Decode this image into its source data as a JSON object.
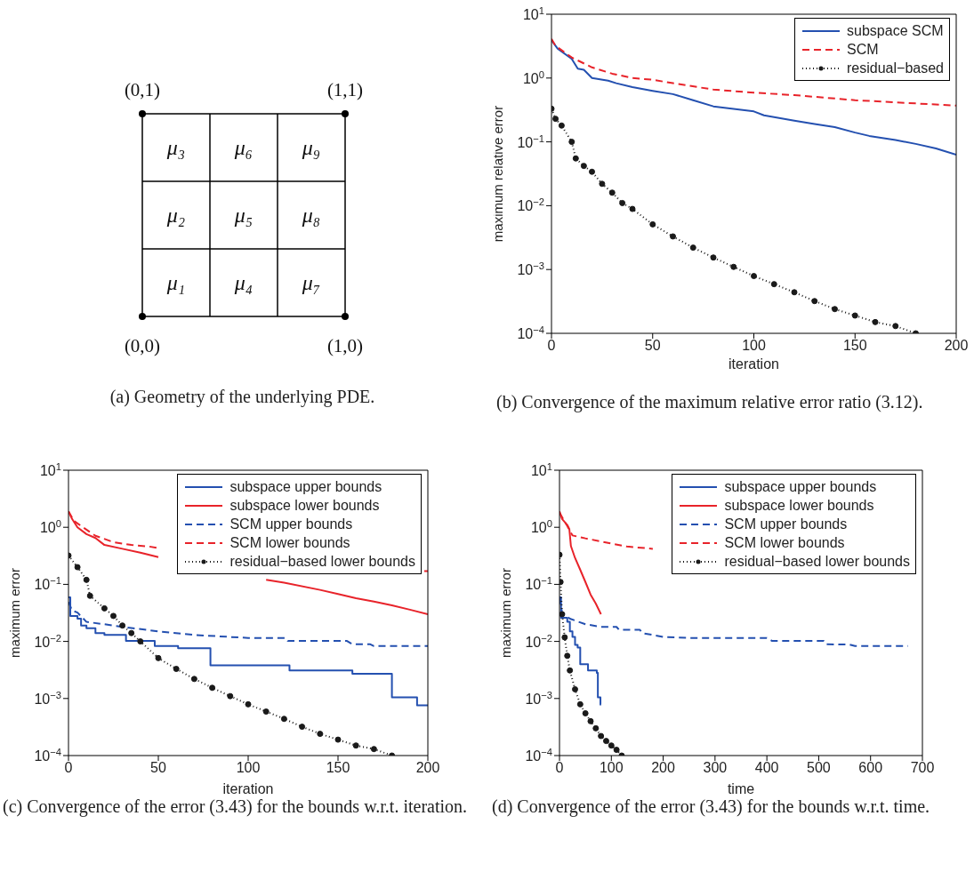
{
  "chart_data": [
    {
      "type": "other",
      "annotations": [
        "(0,1)",
        "(1,1)",
        "(0,0)",
        "(1,0)",
        "μ₃",
        "μ₆",
        "μ₉",
        "μ₂",
        "μ₅",
        "μ₈",
        "μ₁",
        "μ₄",
        "μ₇",
        "(a) Geometry of the underlying PDE."
      ]
    },
    {
      "type": "line",
      "xlabel": "iteration",
      "ylabel": "maximum relative error",
      "log": "y",
      "xlim": [
        0,
        200
      ],
      "xticks": [
        0,
        50,
        100,
        150,
        200
      ],
      "ylim": [
        0.0001,
        10
      ],
      "yticks": [
        {
          "value": 0.0001,
          "label": "10$^{−4}$"
        },
        {
          "value": 0.001,
          "label": "10$^{−3}$"
        },
        {
          "value": 0.01,
          "label": "10$^{−2}$"
        },
        {
          "value": 0.1,
          "label": "10$^{−1}$"
        },
        {
          "value": 1,
          "label": "10$^{0}$"
        },
        {
          "value": 10,
          "label": "10$^{1}$"
        }
      ],
      "legend": "top right",
      "annotations": [
        "(b) Convergence of the maximum relative error ratio (3.12)."
      ],
      "series": [
        {
          "name": "subspace SCM",
          "color": "#2450b0",
          "line_style": "solid",
          "x": [
            0,
            3,
            10,
            13,
            16,
            20,
            28,
            32,
            40,
            50,
            60,
            70,
            80,
            100,
            105,
            120,
            130,
            140,
            150,
            157,
            170,
            180,
            190,
            200
          ],
          "values": [
            3.9,
            2.9,
            2.0,
            1.4,
            1.35,
            1.0,
            0.91,
            0.83,
            0.72,
            0.63,
            0.56,
            0.45,
            0.36,
            0.3,
            0.26,
            0.215,
            0.19,
            0.17,
            0.14,
            0.124,
            0.107,
            0.093,
            0.079,
            0.063
          ]
        },
        {
          "name": "SCM",
          "color": "#e8232a",
          "line_style": "dashed",
          "x": [
            0,
            2,
            10,
            20,
            30,
            40,
            50,
            60,
            80,
            100,
            120,
            150,
            180,
            200
          ],
          "values": [
            4.1,
            3.2,
            2.1,
            1.47,
            1.17,
            1.0,
            0.94,
            0.83,
            0.66,
            0.59,
            0.54,
            0.45,
            0.4,
            0.37
          ]
        },
        {
          "name": "residual−based",
          "color": "#1a1a1a",
          "line_style": "dotted",
          "marker": "circle",
          "x": [
            0,
            2,
            5,
            10,
            12,
            16,
            20,
            25,
            30,
            35,
            40,
            50,
            60,
            70,
            80,
            90,
            100,
            110,
            120,
            130,
            140,
            150,
            160,
            170,
            180
          ],
          "values": [
            0.33,
            0.23,
            0.18,
            0.1,
            0.055,
            0.042,
            0.034,
            0.022,
            0.016,
            0.011,
            0.0089,
            0.0051,
            0.0033,
            0.0022,
            0.00154,
            0.0011,
            0.00079,
            0.00059,
            0.00044,
            0.00032,
            0.00024,
            0.00019,
            0.00015,
            0.00013,
            0.0001
          ]
        }
      ]
    },
    {
      "type": "line",
      "xlabel": "iteration",
      "ylabel": "maximum error",
      "log": "y",
      "xlim": [
        0,
        200
      ],
      "xticks": [
        0,
        50,
        100,
        150,
        200
      ],
      "ylim": [
        0.0001,
        10
      ],
      "yticks": [
        {
          "value": 0.0001,
          "label": "10$^{−4}$"
        },
        {
          "value": 0.001,
          "label": "10$^{−3}$"
        },
        {
          "value": 0.01,
          "label": "10$^{−2}$"
        },
        {
          "value": 0.1,
          "label": "10$^{−1}$"
        },
        {
          "value": 1,
          "label": "10$^{0}$"
        },
        {
          "value": 10,
          "label": "10$^{1}$"
        }
      ],
      "legend": "top right",
      "annotations": [
        "(c) Convergence of the error (3.43) for the bounds w.r.t. iteration."
      ],
      "series": [
        {
          "name": "subspace upper bounds",
          "color": "#2450b0",
          "type": "step",
          "line_style": "solid",
          "x": [
            0,
            1,
            5,
            7,
            10,
            15,
            20,
            32,
            48,
            61,
            79,
            123,
            158,
            180,
            194,
            200
          ],
          "values": [
            0.059,
            0.028,
            0.025,
            0.019,
            0.017,
            0.014,
            0.013,
            0.0102,
            0.0083,
            0.0076,
            0.0038,
            0.0031,
            0.0027,
            0.00105,
            0.00076,
            0.00076
          ]
        },
        {
          "name": "subspace lower bounds",
          "color": "#e8232a",
          "line_style": "solid",
          "x": [
            0,
            2,
            5,
            10,
            15,
            20,
            30,
            40,
            50,
            53,
            110,
            120,
            140,
            150,
            160,
            170,
            180,
            190,
            200
          ],
          "values": [
            1.9,
            1.4,
            1.0,
            0.76,
            0.65,
            0.49,
            0.42,
            0.36,
            0.3,
            null,
            0.12,
            0.107,
            0.08,
            0.068,
            0.057,
            0.05,
            0.043,
            0.036,
            0.03
          ]
        },
        {
          "name": "SCM upper bounds",
          "color": "#2450b0",
          "line_style": "dashed",
          "x": [
            0,
            2,
            5,
            10,
            20,
            30,
            50,
            70,
            100,
            121,
            122,
            155,
            158,
            168,
            170,
            200
          ],
          "values": [
            0.049,
            0.035,
            0.032,
            0.022,
            0.02,
            0.018,
            0.015,
            0.013,
            0.0115,
            0.0115,
            0.0102,
            0.0102,
            0.0089,
            0.0089,
            0.0083,
            0.0083
          ]
        },
        {
          "name": "SCM lower bounds",
          "color": "#e8232a",
          "line_style": "dashed",
          "x": [
            0,
            3,
            8,
            15,
            25,
            35,
            45,
            50,
            53,
            198,
            200
          ],
          "values": [
            1.9,
            1.3,
            1.0,
            0.71,
            0.55,
            0.49,
            0.46,
            0.43,
            null,
            0.17,
            0.17
          ]
        },
        {
          "name": "residual−based lower bounds",
          "color": "#1a1a1a",
          "line_style": "dotted",
          "marker": "circle",
          "x": [
            0,
            5,
            10,
            12,
            20,
            25,
            30,
            35,
            40,
            50,
            60,
            70,
            80,
            90,
            100,
            110,
            120,
            130,
            140,
            150,
            160,
            170,
            180
          ],
          "values": [
            0.32,
            0.2,
            0.12,
            0.063,
            0.038,
            0.028,
            0.019,
            0.014,
            0.01,
            0.0051,
            0.0033,
            0.0022,
            0.00154,
            0.0011,
            0.00079,
            0.00059,
            0.00044,
            0.00032,
            0.00024,
            0.00019,
            0.00015,
            0.00013,
            0.0001
          ]
        }
      ]
    },
    {
      "type": "line",
      "xlabel": "time",
      "ylabel": "maximum error",
      "log": "y",
      "xlim": [
        0,
        700
      ],
      "xticks": [
        0,
        100,
        200,
        300,
        400,
        500,
        600,
        700
      ],
      "ylim": [
        0.0001,
        10
      ],
      "yticks": [
        {
          "value": 0.0001,
          "label": "10$^{−4}$"
        },
        {
          "value": 0.001,
          "label": "10$^{−3}$"
        },
        {
          "value": 0.01,
          "label": "10$^{−2}$"
        },
        {
          "value": 0.1,
          "label": "10$^{−1}$"
        },
        {
          "value": 1,
          "label": "10$^{0}$"
        },
        {
          "value": 10,
          "label": "10$^{1}$"
        }
      ],
      "legend": "top right",
      "annotations": [
        "(d) Convergence of the error (3.43) for the bounds w.r.t. time."
      ],
      "series": [
        {
          "name": "subspace upper bounds",
          "color": "#2450b0",
          "type": "step",
          "line_style": "solid",
          "x": [
            0,
            3,
            15,
            20,
            25,
            30,
            35,
            40,
            55,
            72,
            74,
            79,
            80
          ],
          "values": [
            0.059,
            0.026,
            0.022,
            0.015,
            0.012,
            0.0087,
            0.0078,
            0.004,
            0.0031,
            0.0028,
            0.00105,
            0.00078,
            0.00078
          ]
        },
        {
          "name": "subspace lower bounds",
          "color": "#e8232a",
          "line_style": "solid",
          "x": [
            0,
            5,
            15,
            19,
            22,
            30,
            40,
            50,
            60,
            70,
            80
          ],
          "values": [
            1.9,
            1.4,
            1.1,
            0.93,
            0.47,
            0.29,
            0.18,
            0.11,
            0.066,
            0.046,
            0.03
          ]
        },
        {
          "name": "SCM upper bounds",
          "color": "#2450b0",
          "line_style": "dashed",
          "x": [
            0,
            5,
            20,
            50,
            80,
            110,
            115,
            155,
            160,
            200,
            250,
            400,
            410,
            510,
            515,
            560,
            570,
            672
          ],
          "values": [
            0.059,
            0.032,
            0.025,
            0.02,
            0.018,
            0.018,
            0.016,
            0.016,
            0.014,
            0.012,
            0.0115,
            0.0115,
            0.0102,
            0.0102,
            0.0089,
            0.0088,
            0.0083,
            0.0083
          ]
        },
        {
          "name": "SCM lower bounds",
          "color": "#e8232a",
          "line_style": "dashed",
          "x": [
            0,
            15,
            25,
            50,
            100,
            130,
            180
          ],
          "values": [
            1.8,
            1.05,
            0.72,
            0.64,
            0.52,
            0.46,
            0.42
          ]
        },
        {
          "name": "residual−based lower bounds",
          "color": "#1a1a1a",
          "line_style": "dotted",
          "marker": "circle",
          "x": [
            0,
            2,
            5,
            10,
            15,
            20,
            30,
            40,
            50,
            60,
            70,
            80,
            90,
            100,
            110,
            120
          ],
          "values": [
            0.33,
            0.11,
            0.03,
            0.0118,
            0.0056,
            0.0031,
            0.00145,
            0.00079,
            0.00055,
            0.0004,
            0.0003,
            0.00022,
            0.00018,
            0.00015,
            0.000126,
            0.0001
          ]
        }
      ]
    }
  ]
}
